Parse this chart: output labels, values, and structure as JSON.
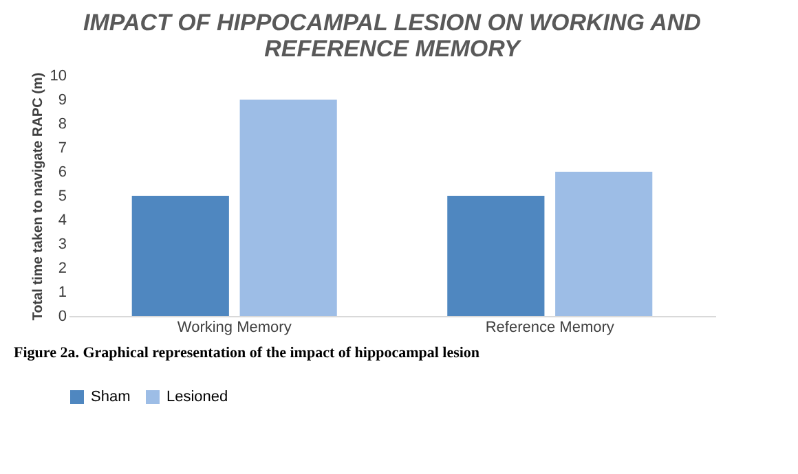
{
  "chart_data": {
    "type": "bar",
    "title": "IMPACT OF HIPPOCAMPAL LESION ON WORKING AND REFERENCE MEMORY",
    "ylabel": "Total time taken to navigate RAPC (m)",
    "categories": [
      "Working Memory",
      "Reference Memory"
    ],
    "series": [
      {
        "name": "Sham",
        "color": "#4f87c0",
        "values": [
          5,
          5
        ]
      },
      {
        "name": "Lesioned",
        "color": "#9dbde6",
        "values": [
          9,
          6
        ]
      }
    ],
    "ylim": [
      0,
      10
    ],
    "yticks": [
      0,
      1,
      2,
      3,
      4,
      5,
      6,
      7,
      8,
      9,
      10
    ],
    "grid": false,
    "legend": "bottom",
    "annotations": [
      "Figure 2a. Graphical representation of the impact of hippocampal lesion"
    ]
  }
}
